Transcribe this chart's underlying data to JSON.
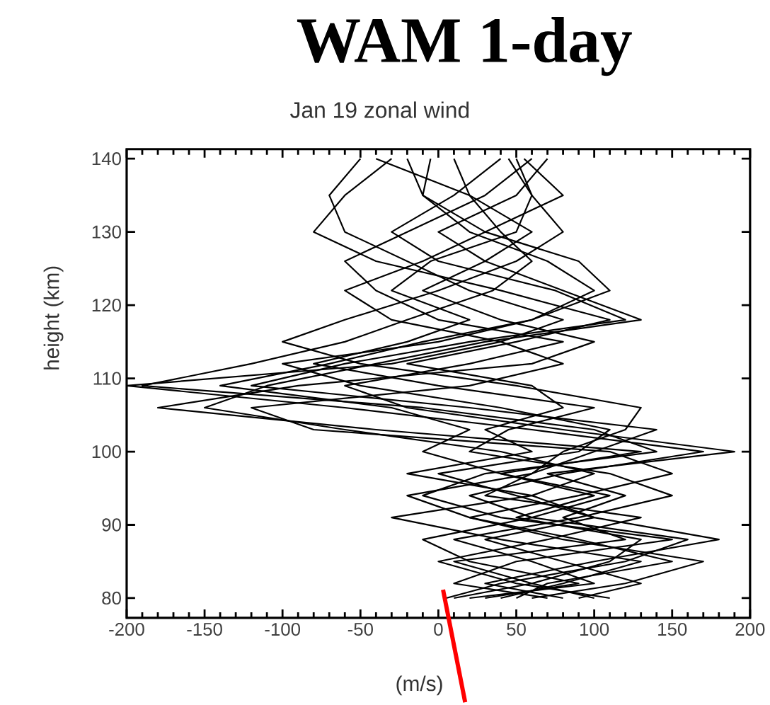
{
  "chart_data": {
    "type": "line",
    "title": "WAM 1-day",
    "subtitle": "Jan 19 zonal wind",
    "xlabel": "(m/s)",
    "ylabel": "height (km)",
    "xlim": [
      -200,
      200
    ],
    "ylim": [
      77.3,
      141.3
    ],
    "xticks": [
      -200,
      -150,
      -100,
      -50,
      0,
      50,
      100,
      150,
      200
    ],
    "yticks": [
      80,
      90,
      100,
      110,
      120,
      130,
      140
    ],
    "grid": false,
    "series": [
      {
        "color": "#000000",
        "values": [
          80,
          82,
          85,
          88,
          91,
          94,
          97,
          100,
          103,
          106,
          109,
          112,
          115,
          118,
          122,
          126,
          130,
          135,
          140
        ],
        "x": [
          5,
          40,
          120,
          160,
          60,
          20,
          80,
          170,
          60,
          -60,
          -200,
          -30,
          40,
          80,
          20,
          -20,
          -60,
          -70,
          -50
        ]
      },
      {
        "color": "#000000",
        "values": [
          80,
          82,
          85,
          88,
          91,
          94,
          97,
          100,
          103,
          106,
          109,
          112,
          115,
          118,
          122,
          126,
          130,
          135,
          140
        ],
        "x": [
          30,
          90,
          20,
          -10,
          60,
          110,
          40,
          130,
          -40,
          -180,
          -90,
          60,
          100,
          40,
          -10,
          30,
          60,
          20,
          -40
        ]
      },
      {
        "color": "#000000",
        "values": [
          80,
          82,
          85,
          88,
          91,
          94,
          97,
          100,
          103,
          106,
          109,
          112,
          115,
          118,
          122,
          126,
          130,
          135,
          140
        ],
        "x": [
          60,
          120,
          170,
          80,
          20,
          -20,
          60,
          100,
          140,
          20,
          -120,
          -60,
          20,
          120,
          75,
          0,
          -30,
          10,
          40
        ]
      },
      {
        "color": "#000000",
        "values": [
          80,
          82,
          85,
          88,
          91,
          94,
          97,
          100,
          103,
          106,
          109,
          112,
          115,
          118,
          122,
          126,
          130,
          135,
          140
        ],
        "x": [
          80,
          30,
          100,
          180,
          100,
          50,
          0,
          90,
          110,
          40,
          -50,
          -100,
          0,
          60,
          100,
          70,
          20,
          -10,
          -20
        ]
      },
      {
        "color": "#000000",
        "values": [
          80,
          82,
          85,
          88,
          91,
          94,
          97,
          100,
          103,
          106,
          109,
          112,
          115,
          118,
          122,
          126,
          130,
          135,
          140
        ],
        "x": [
          100,
          60,
          10,
          120,
          80,
          120,
          70,
          190,
          80,
          -20,
          -60,
          20,
          80,
          0,
          -40,
          -60,
          -20,
          30,
          60
        ]
      },
      {
        "color": "#000000",
        "values": [
          80,
          82,
          85,
          88,
          91,
          94,
          97,
          100,
          103,
          106,
          109,
          112,
          115,
          118,
          122,
          126,
          130,
          135,
          140
        ],
        "x": [
          40,
          80,
          130,
          40,
          -30,
          60,
          100,
          40,
          -60,
          -150,
          -110,
          -40,
          30,
          130,
          80,
          30,
          0,
          50,
          70
        ]
      },
      {
        "color": "#000000",
        "values": [
          80,
          82,
          85,
          88,
          91,
          94,
          97,
          100,
          103,
          106,
          109,
          112,
          115,
          118,
          122,
          126,
          130,
          135,
          140
        ],
        "x": [
          20,
          100,
          60,
          10,
          90,
          150,
          110,
          20,
          45,
          100,
          0,
          -80,
          -20,
          20,
          -30,
          -5,
          50,
          60,
          50
        ]
      },
      {
        "color": "#000000",
        "values": [
          80,
          82,
          85,
          88,
          91,
          94,
          97,
          100,
          103,
          106,
          109,
          112,
          115,
          118,
          122,
          126,
          130,
          135,
          140
        ],
        "x": [
          70,
          10,
          50,
          150,
          40,
          -10,
          30,
          140,
          100,
          -10,
          -190,
          -120,
          -60,
          -20,
          35,
          60,
          40,
          20,
          10
        ]
      },
      {
        "color": "#000000",
        "values": [
          80,
          82,
          85,
          88,
          91,
          94,
          97,
          100,
          103,
          106,
          109,
          112,
          115,
          118,
          122,
          126,
          130,
          135,
          140
        ],
        "x": [
          90,
          130,
          80,
          30,
          100,
          60,
          -20,
          60,
          30,
          80,
          60,
          -20,
          50,
          110,
          40,
          -40,
          -80,
          -60,
          -30
        ]
      },
      {
        "color": "#000000",
        "values": [
          80,
          82,
          85,
          88,
          91,
          94,
          97,
          100,
          103,
          106,
          109,
          112,
          115,
          118,
          122,
          126,
          130,
          135,
          140
        ],
        "x": [
          50,
          70,
          150,
          90,
          20,
          90,
          150,
          110,
          -80,
          -120,
          20,
          80,
          40,
          -30,
          -60,
          -10,
          30,
          80,
          55
        ]
      },
      {
        "color": "#000000",
        "values": [
          80,
          82,
          85,
          88,
          91,
          94,
          97,
          100,
          103,
          106,
          109,
          112,
          115,
          118,
          122,
          126,
          130,
          135,
          140
        ],
        "x": [
          110,
          50,
          0,
          70,
          130,
          30,
          60,
          80,
          120,
          130,
          50,
          -50,
          -100,
          -60,
          0,
          50,
          80,
          60,
          45
        ]
      },
      {
        "color": "#000000",
        "values": [
          80,
          82,
          85,
          88,
          91,
          94,
          97,
          100,
          103,
          106,
          109,
          112,
          115,
          118,
          122,
          126,
          130,
          135,
          140
        ],
        "x": [
          10,
          60,
          110,
          130,
          50,
          100,
          40,
          -10,
          20,
          -30,
          -140,
          -70,
          -10,
          60,
          110,
          90,
          30,
          -10,
          -5
        ]
      }
    ]
  }
}
